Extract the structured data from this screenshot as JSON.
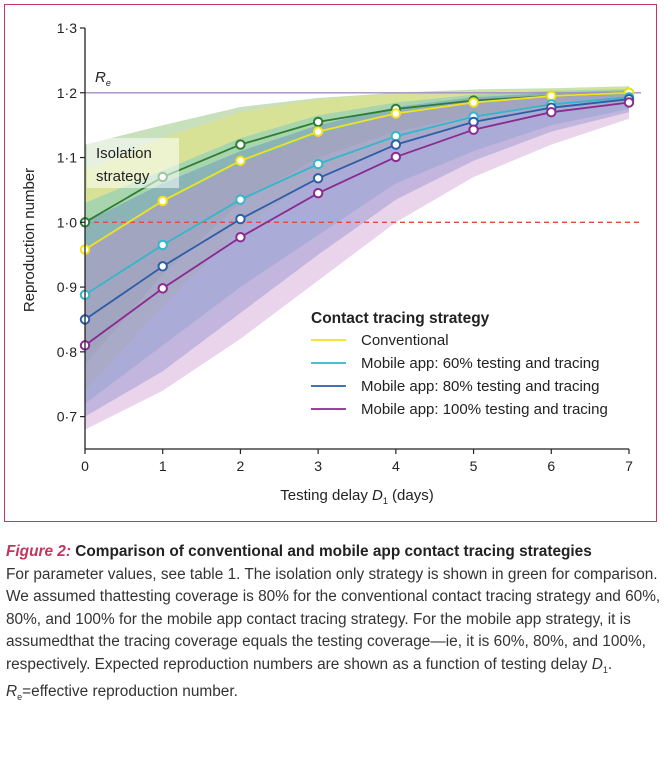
{
  "chart_data": {
    "type": "line",
    "xlabel": "Testing delay D1 (days)",
    "xlabel_parts": {
      "prefix": "Testing delay ",
      "var": "D",
      "sub": "1",
      "suffix": " (days)"
    },
    "ylabel": "Reproduction number",
    "x": [
      0,
      1,
      2,
      3,
      4,
      5,
      6,
      7
    ],
    "xlim": [
      0,
      7
    ],
    "ylim": [
      0.65,
      1.3
    ],
    "x_ticks": [
      "0",
      "1",
      "2",
      "3",
      "4",
      "5",
      "6",
      "7"
    ],
    "y_ticks": [
      {
        "value": 0.7,
        "label": "0·7"
      },
      {
        "value": 0.8,
        "label": "0·8"
      },
      {
        "value": 0.9,
        "label": "0·9"
      },
      {
        "value": 1.0,
        "label": "1·0"
      },
      {
        "value": 1.1,
        "label": "1·1"
      },
      {
        "value": 1.2,
        "label": "1·2"
      },
      {
        "value": 1.3,
        "label": "1·3"
      }
    ],
    "reference_lines": [
      {
        "name": "Re",
        "label": "R",
        "sub": "e",
        "value": 1.2,
        "color": "#a78cc8",
        "style": "solid"
      },
      {
        "name": "threshold",
        "value": 1.0,
        "color": "#e8463f",
        "style": "dashed"
      }
    ],
    "annotation": {
      "lines": [
        "Isolation",
        "strategy"
      ],
      "at_x": 0,
      "at_y": 1.1
    },
    "legend": {
      "title": "Contact tracing strategy",
      "placement": "bottom-right"
    },
    "series": [
      {
        "name": "Isolation strategy",
        "in_legend": false,
        "color": "#2e7d32",
        "band_color": "#6fae4f",
        "values": [
          1.0,
          1.07,
          1.12,
          1.155,
          1.175,
          1.188,
          1.195,
          1.2
        ],
        "lower": [
          0.78,
          0.92,
          1.03,
          1.1,
          1.14,
          1.165,
          1.18,
          1.19
        ],
        "upper": [
          1.12,
          1.15,
          1.178,
          1.192,
          1.2,
          1.205,
          1.207,
          1.21
        ]
      },
      {
        "name": "Conventional",
        "in_legend": true,
        "color": "#f2e21d",
        "band_color": "#f0e45a",
        "values": [
          0.958,
          1.033,
          1.095,
          1.14,
          1.168,
          1.185,
          1.195,
          1.2
        ],
        "lower": [
          0.74,
          0.87,
          0.99,
          1.07,
          1.12,
          1.155,
          1.175,
          1.185
        ],
        "upper": [
          1.08,
          1.13,
          1.17,
          1.19,
          1.198,
          1.203,
          1.206,
          1.208
        ]
      },
      {
        "name": "Mobile app: 60% testing and tracing",
        "in_legend": true,
        "color": "#34b6cc",
        "band_color": "#5cc0d3",
        "values": [
          0.888,
          0.965,
          1.035,
          1.09,
          1.133,
          1.163,
          1.182,
          1.193
        ],
        "lower": [
          0.72,
          0.81,
          0.9,
          0.98,
          1.06,
          1.11,
          1.15,
          1.175
        ],
        "upper": [
          1.03,
          1.08,
          1.13,
          1.165,
          1.185,
          1.197,
          1.203,
          1.206
        ]
      },
      {
        "name": "Mobile app: 80% testing and tracing",
        "in_legend": true,
        "color": "#2d5da8",
        "band_color": "#5b7fc4",
        "values": [
          0.85,
          0.932,
          1.005,
          1.068,
          1.12,
          1.155,
          1.177,
          1.19
        ],
        "lower": [
          0.7,
          0.77,
          0.86,
          0.95,
          1.035,
          1.095,
          1.14,
          1.17
        ],
        "upper": [
          1.0,
          1.06,
          1.11,
          1.15,
          1.178,
          1.193,
          1.2,
          1.204
        ]
      },
      {
        "name": "Mobile app: 100% testing and tracing",
        "in_legend": true,
        "color": "#8a2a8e",
        "band_color": "#c58fcc",
        "values": [
          0.81,
          0.898,
          0.977,
          1.045,
          1.101,
          1.143,
          1.17,
          1.185
        ],
        "lower": [
          0.68,
          0.74,
          0.82,
          0.91,
          1.0,
          1.07,
          1.12,
          1.16
        ],
        "upper": [
          0.96,
          1.03,
          1.09,
          1.135,
          1.168,
          1.188,
          1.198,
          1.202
        ]
      }
    ]
  },
  "caption": {
    "figure_label": "Figure 2:",
    "title": " Comparison of conventional and mobile app contact tracing strategies",
    "body_1": "For parameter values, see table 1. The isolation only strategy is shown in green for comparison. We assumed thattesting coverage is 80% for the conventional contact tracing strategy and 60%, 80%, and 100% for the mobile app contact tracing strategy. For the mobile app strategy, it is assumedthat the tracing coverage equals the testing coverage—ie, it is 60%, 80%, and 100%, respectively. Expected reproduction numbers are shown as a function of testing delay ",
    "body_var": "D",
    "body_sub": "1",
    "body_2": ".",
    "re_var": "R",
    "re_sub": "e",
    "re_text": "=effective reproduction number."
  }
}
